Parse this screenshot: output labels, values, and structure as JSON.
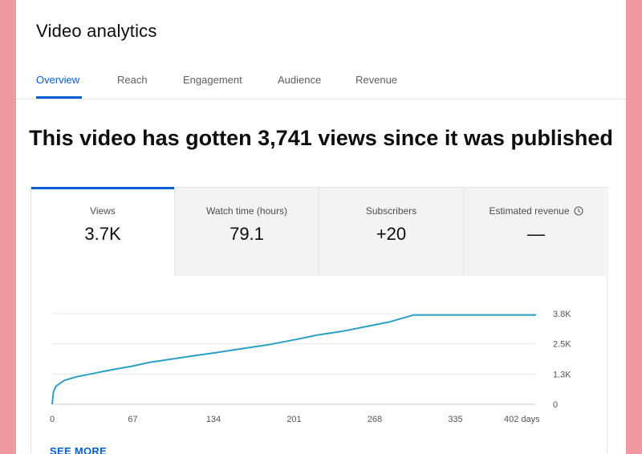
{
  "header": {
    "title": "Video analytics"
  },
  "tabs": [
    {
      "label": "Overview",
      "active": true
    },
    {
      "label": "Reach",
      "active": false
    },
    {
      "label": "Engagement",
      "active": false
    },
    {
      "label": "Audience",
      "active": false
    },
    {
      "label": "Revenue",
      "active": false
    }
  ],
  "headline": "This video has gotten 3,741 views since it was published",
  "metrics": [
    {
      "label": "Views",
      "value": "3.7K",
      "selected": true
    },
    {
      "label": "Watch time (hours)",
      "value": "79.1",
      "selected": false
    },
    {
      "label": "Subscribers",
      "value": "+20",
      "selected": false
    },
    {
      "label": "Estimated revenue",
      "value": "—",
      "selected": false,
      "icon": "clock-icon"
    }
  ],
  "see_more_label": "SEE MORE",
  "colors": {
    "accent": "#065fd4",
    "line": "#2aa0c3",
    "background": "#ee9aa0"
  },
  "chart_data": {
    "type": "line",
    "x_tick_labels": [
      "0",
      "67",
      "134",
      "201",
      "268",
      "335",
      "402 days"
    ],
    "y_tick_labels": [
      "0",
      "1.3K",
      "2.5K",
      "3.8K"
    ],
    "xlim": [
      0,
      402
    ],
    "ylim": [
      0,
      3800
    ],
    "grid": true,
    "series": [
      {
        "x": [
          0,
          1,
          3,
          10,
          20,
          35,
          50,
          67,
          80,
          100,
          120,
          134,
          160,
          180,
          201,
          220,
          240,
          260,
          280,
          300,
          320,
          335,
          360,
          380,
          402
        ],
        "y": [
          0,
          500,
          750,
          1000,
          1150,
          1300,
          1450,
          1600,
          1750,
          1900,
          2050,
          2150,
          2350,
          2500,
          2700,
          2900,
          3050,
          3250,
          3450,
          3741,
          3741,
          3741,
          3741,
          3741,
          3741
        ]
      }
    ]
  }
}
